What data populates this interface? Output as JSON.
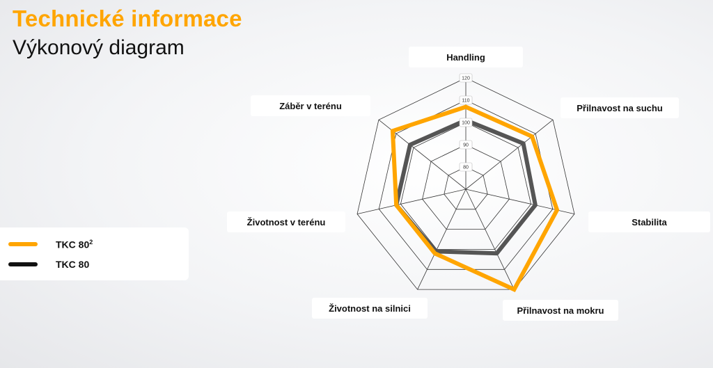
{
  "header": {
    "title": "Technické informace",
    "subtitle": "Výkonový diagram"
  },
  "legend": {
    "items": [
      {
        "label": "TKC 80",
        "sup": "2",
        "color": "#ffa500"
      },
      {
        "label": "TKC 80",
        "sup": "",
        "color": "#111111"
      }
    ]
  },
  "chart_data": {
    "type": "radar",
    "axes": [
      "Handling",
      "Přilnavost na suchu",
      "Stabilita",
      "Přilnavost na mokru",
      "Životnost na silnici",
      "Životnost v terénu",
      "Záběr v terénu"
    ],
    "ticks": [
      80,
      90,
      100,
      110,
      120
    ],
    "range": [
      70,
      120
    ],
    "grid": true,
    "series": [
      {
        "name": "TKC 80²",
        "color": "#ffa500",
        "values": [
          107,
          108,
          112,
          120,
          102,
          102,
          112
        ]
      },
      {
        "name": "TKC 80",
        "color": "#555555",
        "values": [
          101,
          103,
          102,
          102,
          101,
          102,
          102
        ]
      }
    ]
  }
}
